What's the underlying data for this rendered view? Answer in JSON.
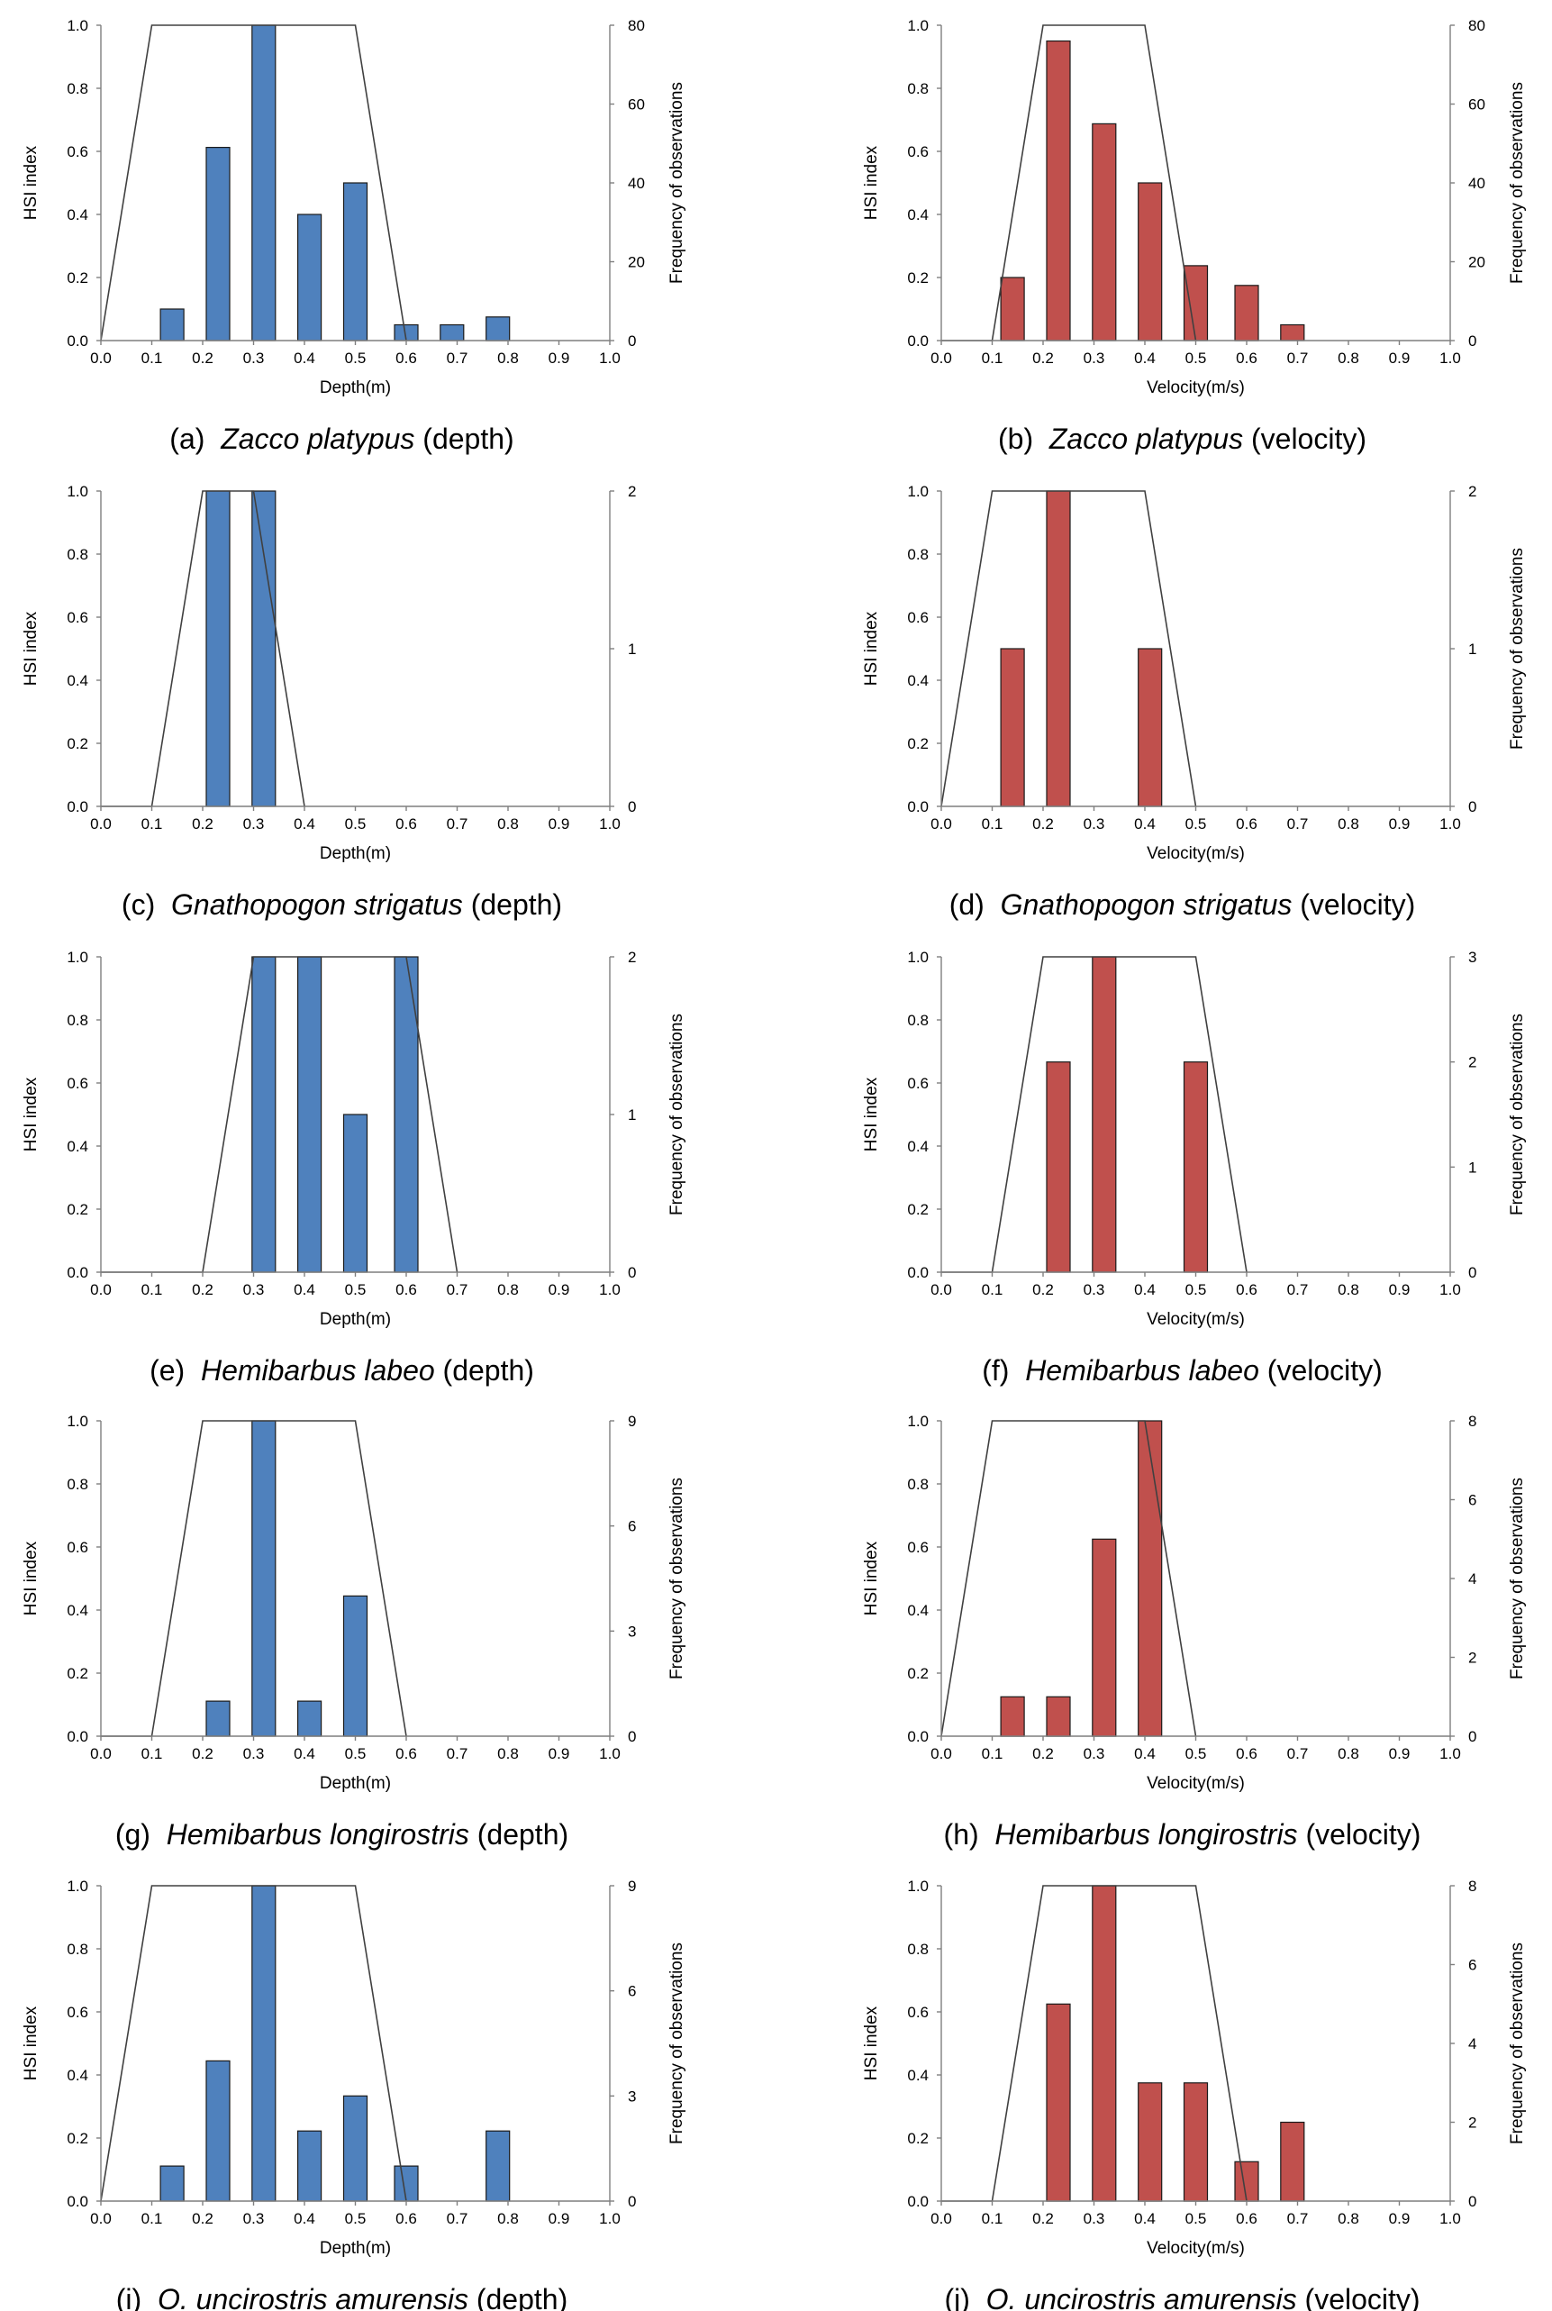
{
  "labels": {
    "hsi_axis": "HSI index",
    "freq_axis": "Frequency of observations",
    "x_ticks": [
      "0.0",
      "0.1",
      "0.2",
      "0.3",
      "0.4",
      "0.5",
      "0.6",
      "0.7",
      "0.8",
      "0.9",
      "1.0"
    ],
    "hsi_ticks": [
      "0.0",
      "0.2",
      "0.4",
      "0.6",
      "0.8",
      "1.0"
    ]
  },
  "colors": {
    "depth_bar": "#4f81bd",
    "velocity_bar": "#c0504d",
    "line": "#404040"
  },
  "chart_data": [
    {
      "type": "bar",
      "id": "a",
      "caption": {
        "prefix": "(a)",
        "species": "Zacco platypus",
        "suffix": "(depth)"
      },
      "xlabel": "Depth(m)",
      "xlim": [
        0,
        1
      ],
      "ylim": [
        0,
        1
      ],
      "y2lim": [
        0,
        80
      ],
      "y2ticks": [
        0,
        20,
        40,
        60,
        80
      ],
      "series": [
        {
          "name": "Frequency of observations",
          "type": "bar",
          "x": [
            0.14,
            0.23,
            0.32,
            0.41,
            0.5,
            0.6,
            0.69,
            0.78
          ],
          "values": [
            8,
            49,
            80,
            32,
            40,
            4,
            4,
            6
          ]
        },
        {
          "name": "HSI index",
          "type": "line",
          "x": [
            0,
            0.1,
            0.5,
            0.6
          ],
          "values": [
            0,
            1,
            1,
            0
          ]
        }
      ]
    },
    {
      "type": "bar",
      "id": "b",
      "caption": {
        "prefix": "(b)",
        "species": "Zacco platypus",
        "suffix": "(velocity)"
      },
      "xlabel": "Velocity(m/s)",
      "xlim": [
        0,
        1
      ],
      "ylim": [
        0,
        1
      ],
      "y2lim": [
        0,
        80
      ],
      "y2ticks": [
        0,
        20,
        40,
        60,
        80
      ],
      "series": [
        {
          "name": "Frequency of observations",
          "type": "bar",
          "x": [
            0.14,
            0.23,
            0.32,
            0.41,
            0.5,
            0.6,
            0.69
          ],
          "values": [
            16,
            76,
            55,
            40,
            19,
            14,
            4
          ]
        },
        {
          "name": "HSI index",
          "type": "line",
          "x": [
            0,
            0.1,
            0.2,
            0.4,
            0.5
          ],
          "values": [
            0,
            0,
            1,
            1,
            0
          ]
        }
      ]
    },
    {
      "type": "bar",
      "id": "c",
      "caption": {
        "prefix": "(c)",
        "species": "Gnathopogon strigatus",
        "suffix": "(depth)"
      },
      "xlabel": "Depth(m)",
      "xlim": [
        0,
        1
      ],
      "ylim": [
        0,
        1
      ],
      "y2lim": [
        0,
        2
      ],
      "y2ticks": [
        0,
        1,
        2
      ],
      "y2label": false,
      "series": [
        {
          "name": "Frequency of observations",
          "type": "bar",
          "x": [
            0.23,
            0.32
          ],
          "values": [
            2,
            2
          ]
        },
        {
          "name": "HSI index",
          "type": "line",
          "x": [
            0,
            0.1,
            0.2,
            0.3,
            0.4
          ],
          "values": [
            0,
            0,
            1,
            1,
            0
          ]
        }
      ]
    },
    {
      "type": "bar",
      "id": "d",
      "caption": {
        "prefix": "(d)",
        "species": "Gnathopogon strigatus",
        "suffix": "(velocity)"
      },
      "xlabel": "Velocity(m/s)",
      "xlim": [
        0,
        1
      ],
      "ylim": [
        0,
        1
      ],
      "y2lim": [
        0,
        2
      ],
      "y2ticks": [
        0,
        1,
        2
      ],
      "series": [
        {
          "name": "Frequency of observations",
          "type": "bar",
          "x": [
            0.14,
            0.23,
            0.41
          ],
          "values": [
            1,
            2,
            1
          ]
        },
        {
          "name": "HSI index",
          "type": "line",
          "x": [
            0,
            0.1,
            0.4,
            0.5
          ],
          "values": [
            0,
            1,
            1,
            0
          ]
        }
      ]
    },
    {
      "type": "bar",
      "id": "e",
      "caption": {
        "prefix": "(e)",
        "species": "Hemibarbus labeo",
        "suffix": "(depth)"
      },
      "xlabel": "Depth(m)",
      "xlim": [
        0,
        1
      ],
      "ylim": [
        0,
        1
      ],
      "y2lim": [
        0,
        2
      ],
      "y2ticks": [
        0,
        1,
        2
      ],
      "series": [
        {
          "name": "Frequency of observations",
          "type": "bar",
          "x": [
            0.32,
            0.41,
            0.5,
            0.6
          ],
          "values": [
            2,
            2,
            1,
            2
          ]
        },
        {
          "name": "HSI index",
          "type": "line",
          "x": [
            0,
            0.2,
            0.3,
            0.6,
            0.7
          ],
          "values": [
            0,
            0,
            1,
            1,
            0
          ]
        }
      ]
    },
    {
      "type": "bar",
      "id": "f",
      "caption": {
        "prefix": "(f)",
        "species": "Hemibarbus labeo",
        "suffix": "(velocity)"
      },
      "xlabel": "Velocity(m/s)",
      "xlim": [
        0,
        1
      ],
      "ylim": [
        0,
        1
      ],
      "y2lim": [
        0,
        3
      ],
      "y2ticks": [
        0,
        1,
        2,
        3
      ],
      "series": [
        {
          "name": "Frequency of observations",
          "type": "bar",
          "x": [
            0.23,
            0.32,
            0.5
          ],
          "values": [
            2,
            3,
            2
          ]
        },
        {
          "name": "HSI index",
          "type": "line",
          "x": [
            0,
            0.1,
            0.2,
            0.5,
            0.6
          ],
          "values": [
            0,
            0,
            1,
            1,
            0
          ]
        }
      ]
    },
    {
      "type": "bar",
      "id": "g",
      "caption": {
        "prefix": "(g)",
        "species": "Hemibarbus longirostris",
        "suffix": "(depth)"
      },
      "xlabel": "Depth(m)",
      "xlim": [
        0,
        1
      ],
      "ylim": [
        0,
        1
      ],
      "y2lim": [
        0,
        9
      ],
      "y2ticks": [
        0,
        3,
        6,
        9
      ],
      "series": [
        {
          "name": "Frequency of observations",
          "type": "bar",
          "x": [
            0.23,
            0.32,
            0.41,
            0.5
          ],
          "values": [
            1,
            9,
            1,
            4
          ]
        },
        {
          "name": "HSI index",
          "type": "line",
          "x": [
            0,
            0.1,
            0.2,
            0.5,
            0.6
          ],
          "values": [
            0,
            0,
            1,
            1,
            0
          ]
        }
      ]
    },
    {
      "type": "bar",
      "id": "h",
      "caption": {
        "prefix": "(h)",
        "species": "Hemibarbus longirostris",
        "suffix": "(velocity)"
      },
      "xlabel": "Velocity(m/s)",
      "xlim": [
        0,
        1
      ],
      "ylim": [
        0,
        1
      ],
      "y2lim": [
        0,
        8
      ],
      "y2ticks": [
        0,
        2,
        4,
        6,
        8
      ],
      "series": [
        {
          "name": "Frequency of observations",
          "type": "bar",
          "x": [
            0.14,
            0.23,
            0.32,
            0.41
          ],
          "values": [
            1,
            1,
            5,
            8
          ]
        },
        {
          "name": "HSI index",
          "type": "line",
          "x": [
            0,
            0.1,
            0.4,
            0.5
          ],
          "values": [
            0,
            1,
            1,
            0
          ]
        }
      ]
    },
    {
      "type": "bar",
      "id": "i",
      "caption": {
        "prefix": "(i)",
        "species": "O. uncirostris amurensis",
        "suffix": "(depth)"
      },
      "xlabel": "Depth(m)",
      "xlim": [
        0,
        1
      ],
      "ylim": [
        0,
        1
      ],
      "y2lim": [
        0,
        9
      ],
      "y2ticks": [
        0,
        3,
        6,
        9
      ],
      "series": [
        {
          "name": "Frequency of observations",
          "type": "bar",
          "x": [
            0.14,
            0.23,
            0.32,
            0.41,
            0.5,
            0.6,
            0.78
          ],
          "values": [
            1,
            4,
            9,
            2,
            3,
            1,
            2
          ]
        },
        {
          "name": "HSI index",
          "type": "line",
          "x": [
            0,
            0.1,
            0.5,
            0.6
          ],
          "values": [
            0,
            1,
            1,
            0
          ]
        }
      ]
    },
    {
      "type": "bar",
      "id": "j",
      "caption": {
        "prefix": "(j)",
        "species": "O. uncirostris amurensis",
        "suffix": "(velocity)"
      },
      "xlabel": "Velocity(m/s)",
      "xlim": [
        0,
        1
      ],
      "ylim": [
        0,
        1
      ],
      "y2lim": [
        0,
        8
      ],
      "y2ticks": [
        0,
        2,
        4,
        6,
        8
      ],
      "series": [
        {
          "name": "Frequency of observations",
          "type": "bar",
          "x": [
            0.23,
            0.32,
            0.41,
            0.5,
            0.6,
            0.69
          ],
          "values": [
            5,
            8,
            3,
            3,
            1,
            2
          ]
        },
        {
          "name": "HSI index",
          "type": "line",
          "x": [
            0,
            0.1,
            0.2,
            0.5,
            0.6
          ],
          "values": [
            0,
            0,
            1,
            1,
            0
          ]
        }
      ]
    }
  ]
}
